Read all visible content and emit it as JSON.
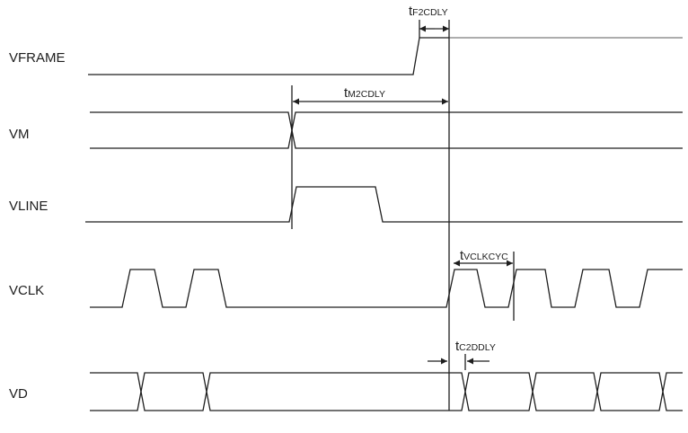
{
  "signals": {
    "vframe": "VFRAME",
    "vm": "VM",
    "vline": "VLINE",
    "vclk": "VCLK",
    "vd": "VD"
  },
  "timings": {
    "f2cdly": {
      "t": "t",
      "sub": "F2CDLY"
    },
    "m2cdly": {
      "t": "t",
      "sub": "M2CDLY"
    },
    "vclkcyc": {
      "t": "t",
      "sub": "VCLKCYC"
    },
    "c2ddly": {
      "t": "t",
      "sub": "C2DDLY"
    }
  },
  "colors": {
    "line": "#1e1e1e",
    "vframe_high": "#7c7c7c",
    "background": "#ffffff"
  }
}
